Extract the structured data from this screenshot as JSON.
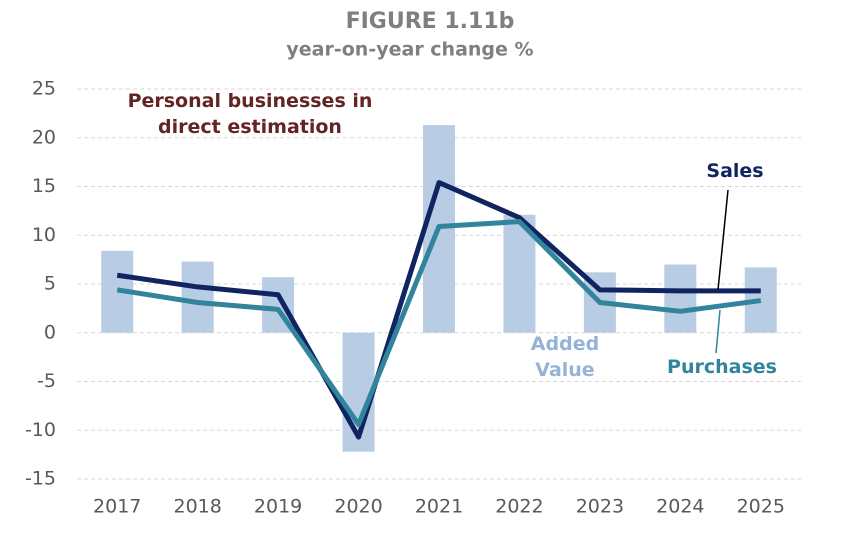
{
  "chart_data": {
    "type": "bar",
    "title": "FIGURE 1.11b",
    "subtitle": "year-on-year change %",
    "annotation": "Personal businesses in direct estimation",
    "categories": [
      "2017",
      "2018",
      "2019",
      "2020",
      "2021",
      "2022",
      "2023",
      "2024",
      "2025"
    ],
    "series": [
      {
        "name": "Added Value",
        "type": "bar",
        "color": "#b8cce4",
        "values": [
          8.4,
          7.3,
          5.7,
          -12.2,
          21.3,
          12.1,
          6.2,
          7.0,
          6.7
        ]
      },
      {
        "name": "Sales",
        "type": "line",
        "color": "#0f2460",
        "values": [
          5.9,
          4.7,
          3.9,
          -10.7,
          15.4,
          11.8,
          4.4,
          4.3,
          4.3
        ]
      },
      {
        "name": "Purchases",
        "type": "line",
        "color": "#31849b",
        "values": [
          4.4,
          3.1,
          2.4,
          -9.4,
          10.9,
          11.4,
          3.1,
          2.2,
          3.3
        ]
      }
    ],
    "ylim": [
      -15,
      25
    ],
    "yticks": [
      -15,
      -10,
      -5,
      0,
      5,
      10,
      15,
      20,
      25
    ],
    "grid": true
  }
}
